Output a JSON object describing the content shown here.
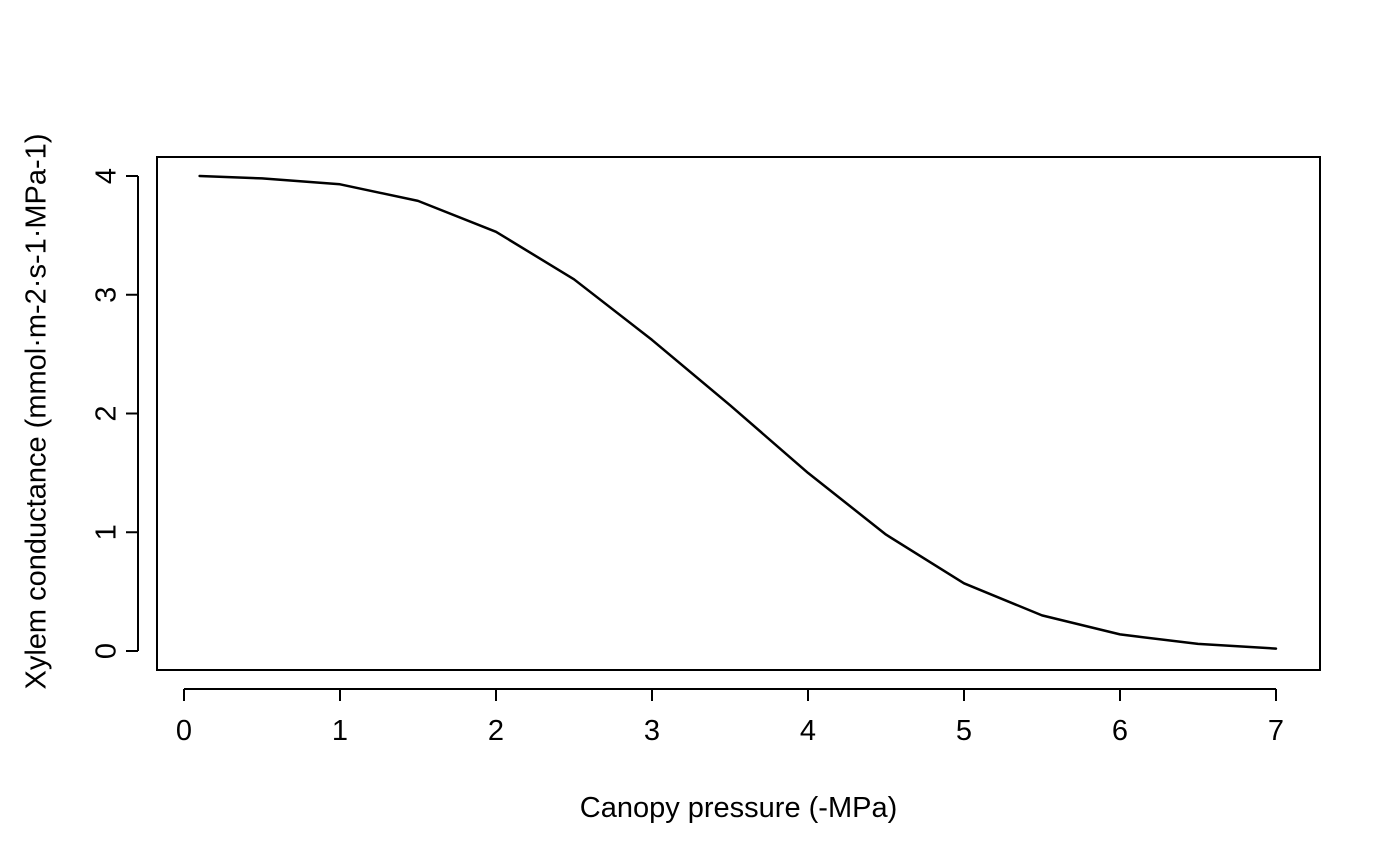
{
  "chart_data": {
    "type": "line",
    "title": "",
    "xlabel": "Canopy pressure (-MPa)",
    "ylabel": "Xylem conductance (mmol·m-2·s-1·MPa-1)",
    "xlim": [
      0,
      7
    ],
    "ylim": [
      0,
      4
    ],
    "x_ticks": [
      0,
      1,
      2,
      3,
      4,
      5,
      6,
      7
    ],
    "y_ticks": [
      0,
      1,
      2,
      3,
      4
    ],
    "x_tick_labels": [
      "0",
      "1",
      "2",
      "3",
      "4",
      "5",
      "6",
      "7"
    ],
    "y_tick_labels": [
      "0",
      "1",
      "2",
      "3",
      "4"
    ],
    "grid": false,
    "legend": "none",
    "line_color": "#000000",
    "series": [
      {
        "x": [
          0.1,
          0.5,
          1.0,
          1.5,
          2.0,
          2.5,
          3.0,
          3.5,
          4.0,
          4.5,
          5.0,
          5.5,
          6.0,
          6.5,
          7.0
        ],
        "y": [
          4.0,
          3.98,
          3.93,
          3.79,
          3.53,
          3.13,
          2.62,
          2.07,
          1.5,
          0.98,
          0.57,
          0.3,
          0.14,
          0.06,
          0.02
        ]
      }
    ]
  }
}
